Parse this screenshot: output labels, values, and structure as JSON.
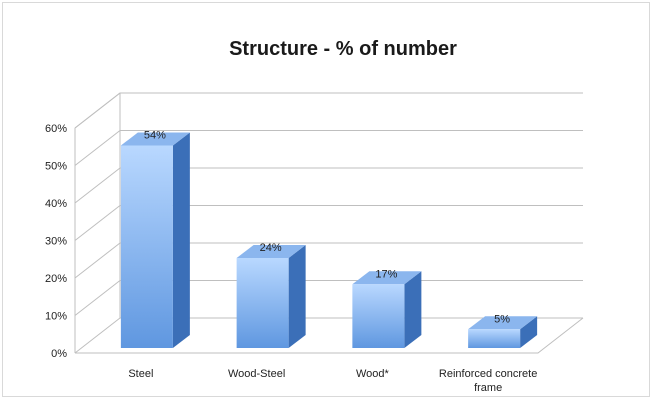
{
  "chart_data": {
    "type": "bar",
    "title": "Structure - % of number",
    "categories": [
      "Steel",
      "Wood-Steel",
      "Wood*",
      "Reinforced concrete frame"
    ],
    "category_label_lines": [
      [
        "Steel"
      ],
      [
        "Wood-Steel"
      ],
      [
        "Wood*"
      ],
      [
        "Reinforced concrete",
        "frame"
      ]
    ],
    "values": [
      54,
      24,
      17,
      5
    ],
    "data_labels": [
      "54%",
      "24%",
      "17%",
      "5%"
    ],
    "ylim": [
      0,
      60
    ],
    "yticks": [
      0,
      10,
      20,
      30,
      40,
      50,
      60
    ],
    "ytick_labels": [
      "0%",
      "10%",
      "20%",
      "30%",
      "40%",
      "50%",
      "60%"
    ],
    "xlabel": "",
    "ylabel": "",
    "grid": true,
    "legend": "none",
    "style": "3d-column",
    "colors": {
      "bar_front_top": "#b9d8ff",
      "bar_front_bottom": "#5f97e0",
      "bar_side": "#3b6fb8",
      "bar_top": "#8bb6ee",
      "grid": "#bfbfbf",
      "walls": "#ffffff"
    }
  }
}
